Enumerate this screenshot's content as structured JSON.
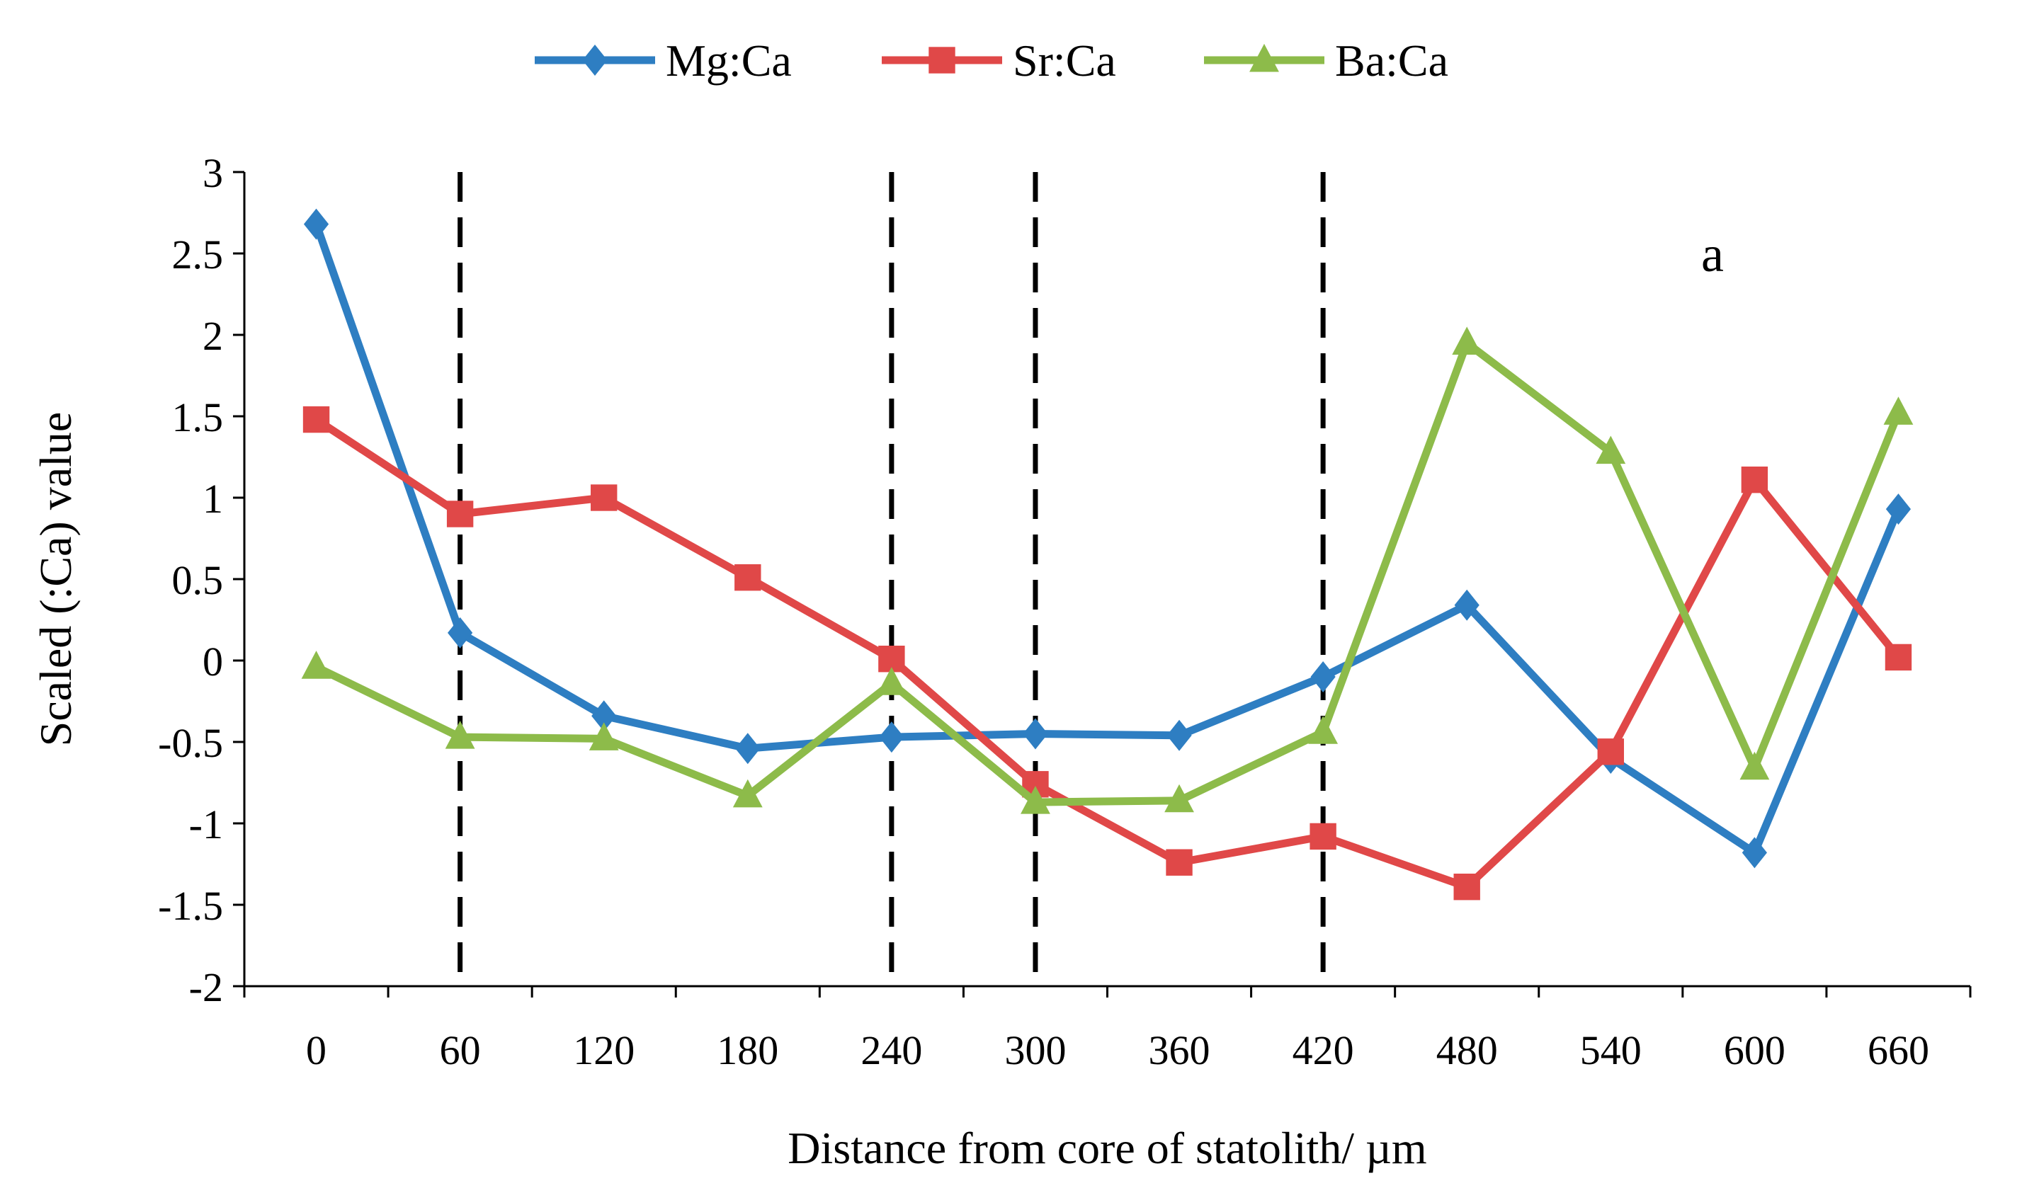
{
  "chart_data": {
    "type": "line",
    "title": "",
    "panel_label": "a",
    "xlabel": "Distance from core of statolith/ µm",
    "ylabel": "Scaled (:Ca) value",
    "categories": [
      "0",
      "60",
      "120",
      "180",
      "240",
      "300",
      "360",
      "420",
      "480",
      "540",
      "600",
      "660"
    ],
    "x": [
      0,
      60,
      120,
      180,
      240,
      300,
      360,
      420,
      480,
      540,
      600,
      660
    ],
    "ylim": [
      -2,
      3
    ],
    "yticks": [
      -2,
      -1.5,
      -1,
      -0.5,
      0,
      0.5,
      1,
      1.5,
      2,
      2.5,
      3
    ],
    "ytick_labels": [
      "-2",
      "-1.5",
      "-1",
      "-0.5",
      "0",
      "0.5",
      "1",
      "1.5",
      "2",
      "2.5",
      "3"
    ],
    "grid": false,
    "legend_position": "top",
    "vlines_x": [
      60,
      240,
      300,
      420
    ],
    "series": [
      {
        "name": "Mg:Ca",
        "color": "#2E7EC2",
        "marker": "diamond",
        "values": [
          2.68,
          0.17,
          -0.34,
          -0.54,
          -0.47,
          -0.45,
          -0.46,
          -0.1,
          0.34,
          -0.6,
          -1.18,
          0.93
        ]
      },
      {
        "name": "Sr:Ca",
        "color": "#E04848",
        "marker": "square",
        "values": [
          1.48,
          0.9,
          1.0,
          0.51,
          0.01,
          -0.76,
          -1.24,
          -1.08,
          -1.39,
          -0.56,
          1.11,
          0.02
        ]
      },
      {
        "name": "Ba:Ca",
        "color": "#8DBB4A",
        "marker": "triangle",
        "values": [
          -0.04,
          -0.47,
          -0.48,
          -0.83,
          -0.14,
          -0.87,
          -0.86,
          -0.44,
          1.95,
          1.28,
          -0.66,
          1.52
        ]
      }
    ]
  }
}
